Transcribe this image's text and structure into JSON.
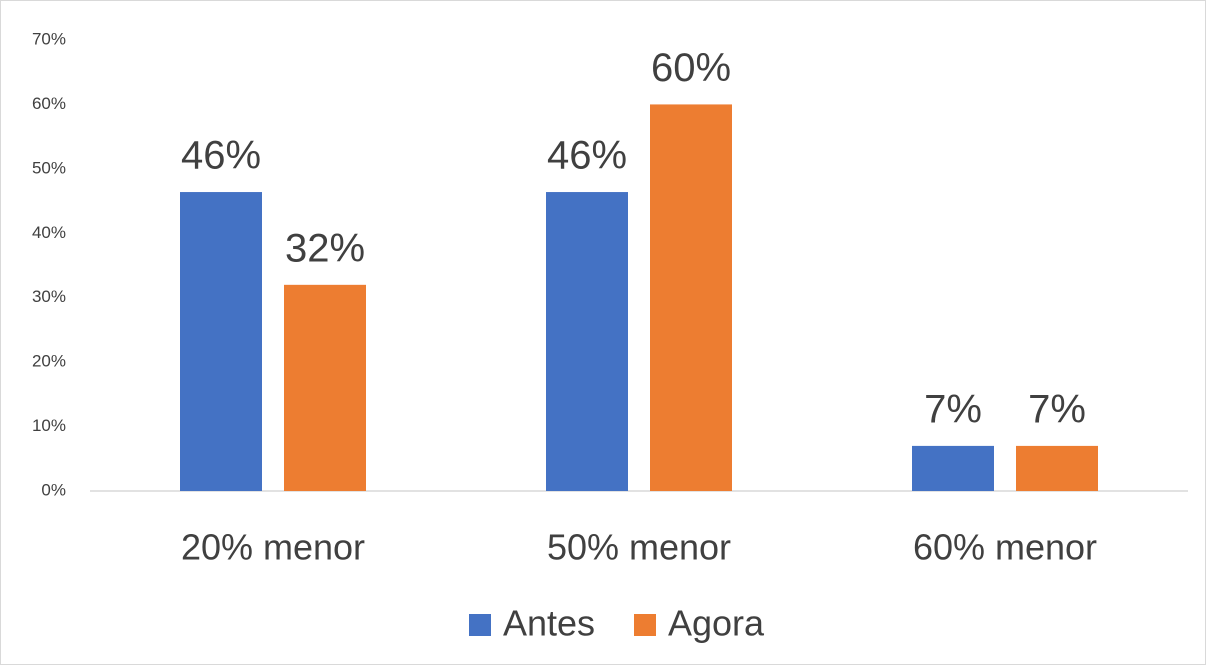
{
  "chart_data": {
    "type": "bar",
    "categories": [
      "20% menor",
      "50% menor",
      "60% menor"
    ],
    "series": [
      {
        "name": "Antes",
        "color": "#4472c4",
        "values": [
          46.4,
          46.4,
          7
        ],
        "value_labels": [
          "46%",
          "46%",
          "7%"
        ]
      },
      {
        "name": "Agora",
        "color": "#ed7d31",
        "values": [
          32,
          60,
          7
        ],
        "value_labels": [
          "32%",
          "60%",
          "7%"
        ]
      }
    ],
    "ylim": [
      0,
      70
    ],
    "yticks": [
      {
        "value": 0,
        "label": "0%"
      },
      {
        "value": 10,
        "label": "10%"
      },
      {
        "value": 20,
        "label": "20%"
      },
      {
        "value": 30,
        "label": "30%"
      },
      {
        "value": 40,
        "label": "40%"
      },
      {
        "value": 50,
        "label": "50%"
      },
      {
        "value": 60,
        "label": "60%"
      },
      {
        "value": 70,
        "label": "70%"
      }
    ],
    "grid": false,
    "legend": "bottom"
  }
}
